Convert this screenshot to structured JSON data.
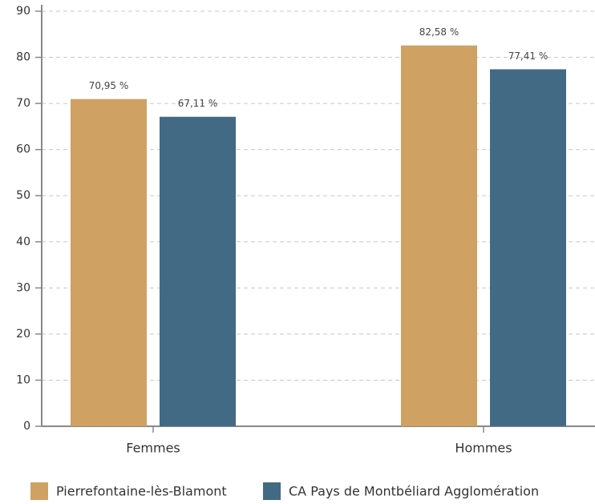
{
  "chart_data": {
    "type": "bar",
    "categories": [
      "Femmes",
      "Hommes"
    ],
    "series": [
      {
        "name": "Pierrefontaine-lès-Blamont",
        "color": "#cfa163",
        "values": [
          70.95,
          82.58
        ],
        "value_labels": [
          "70,95 %",
          "82,58 %"
        ]
      },
      {
        "name": "CA Pays de Montbéliard Agglomération",
        "color": "#436a84",
        "values": [
          67.11,
          77.41
        ],
        "value_labels": [
          "67,11 %",
          "77,41 %"
        ]
      }
    ],
    "ylim": [
      0,
      90
    ],
    "yticks": [
      0,
      10,
      20,
      30,
      40,
      50,
      60,
      70,
      80,
      90
    ],
    "grid": true,
    "legend": "bottom"
  }
}
